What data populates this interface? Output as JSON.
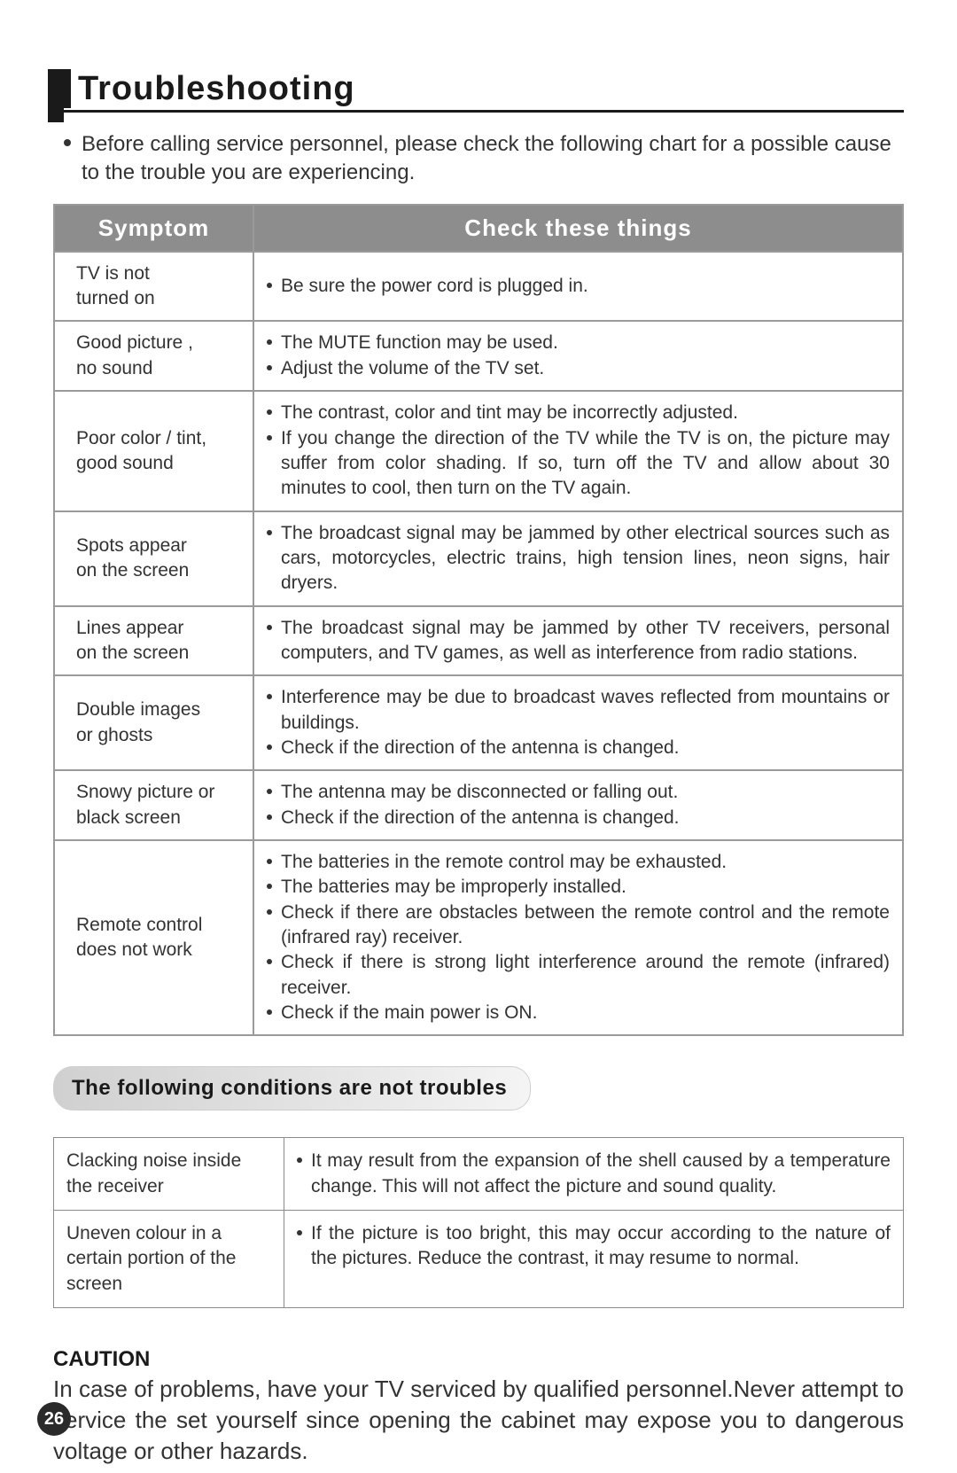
{
  "title": "Troubleshooting",
  "intro": "Before calling service personnel, please check the following chart for a possible cause to the trouble you are experiencing.",
  "table1": {
    "headers": {
      "symptom": "Symptom",
      "checks": "Check these things"
    },
    "rows": [
      {
        "symptom": "TV is not\nturned  on",
        "checks": [
          "Be sure the power cord is plugged in."
        ]
      },
      {
        "symptom": "Good picture ,\nno sound",
        "checks": [
          "The MUTE function may be used.",
          "Adjust the volume of the TV set."
        ]
      },
      {
        "symptom": "Poor color / tint,\ngood sound",
        "checks": [
          "The contrast, color and tint may be incorrectly adjusted.",
          "If you change the direction of the TV while the TV is on, the picture may suffer from color shading. If so, turn off the TV and allow about 30 minutes to cool, then turn on the TV again."
        ]
      },
      {
        "symptom": "Spots appear\non the screen",
        "checks": [
          "The broadcast signal may be jammed by other electrical sources such as cars, motorcycles, electric trains, high tension lines, neon signs, hair dryers."
        ]
      },
      {
        "symptom": "Lines appear\non the screen",
        "checks": [
          "The broadcast signal may be jammed by other TV receivers, personal computers, and TV games, as well as interference from radio stations."
        ]
      },
      {
        "symptom": "Double images\nor ghosts",
        "checks": [
          "Interference may be due to broadcast waves reflected from mountains or buildings.",
          "Check if the direction of the antenna is changed."
        ]
      },
      {
        "symptom": "Snowy picture or\nblack screen",
        "checks": [
          "The antenna may be disconnected or falling out.",
          "Check if the direction of the antenna is changed."
        ]
      },
      {
        "symptom": "Remote control\ndoes not work",
        "checks": [
          "The batteries in the remote control may be exhausted.",
          "The batteries  may be improperly installed.",
          "Check if there are obstacles between the remote control and the remote (infrared ray) receiver.",
          "Check if there is strong light interference around the remote (infrared) receiver.",
          "Check if the main power is ON."
        ]
      }
    ]
  },
  "separator_title": "The following conditions are not troubles",
  "table2": {
    "rows": [
      {
        "symptom": "Clacking noise inside the receiver",
        "checks": [
          "It may result from the expansion of the shell caused by a temperature change. This will not affect the picture and sound quality."
        ]
      },
      {
        "symptom": "Uneven colour in a certain portion of the screen",
        "checks": [
          "If the picture is too bright, this may occur according to the nature of the pictures. Reduce the contrast, it may resume to normal."
        ]
      }
    ]
  },
  "caution": {
    "head": "CAUTION",
    "body": "In case of problems, have your TV serviced by qualified personnel.Never attempt to service the set yourself since opening the cabinet may expose you to dangerous voltage or other hazards."
  },
  "page_number": "26",
  "colors": {
    "text": "#333333",
    "heading": "#1a1a1a",
    "table_border": "#9a9a9a",
    "table_header_bg": "#8d8d8d",
    "table_header_fg": "#ffffff",
    "pill_border": "#cfcfcf",
    "page_num_bg": "#2a2a2a"
  },
  "fontsizes": {
    "title": 38,
    "intro": 24,
    "table": 21,
    "pill": 24,
    "caution_head": 24,
    "caution_body": 26
  }
}
